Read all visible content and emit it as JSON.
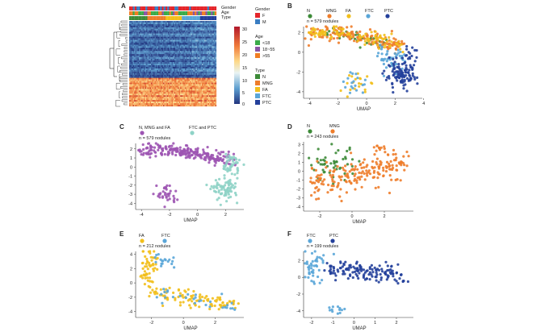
{
  "panel_letters": [
    "A",
    "B",
    "C",
    "D",
    "E",
    "F"
  ],
  "heatmap": {
    "annotation_labels": [
      "Gender",
      "Age",
      "Type"
    ],
    "scale_ticks": [
      "30",
      "25",
      "20",
      "15",
      "10",
      "5",
      "0"
    ],
    "legend": {
      "gender": {
        "title": "Gender",
        "items": [
          {
            "label": "F",
            "color": "#e4262b"
          },
          {
            "label": "M",
            "color": "#3a7dc2"
          }
        ]
      },
      "age": {
        "title": "Age",
        "items": [
          {
            "label": "<18",
            "color": "#3bab4a"
          },
          {
            "label": "18~55",
            "color": "#8a55a5"
          },
          {
            "label": ">55",
            "color": "#f07d22"
          }
        ]
      },
      "type": {
        "title": "Type",
        "items": [
          {
            "label": "N",
            "color": "#3d8b38"
          },
          {
            "label": "MNG",
            "color": "#ee7d2b"
          },
          {
            "label": "FA",
            "color": "#f2bf1c"
          },
          {
            "label": "FTC",
            "color": "#5aa6d8"
          },
          {
            "label": "PTC",
            "color": "#24409b"
          }
        ]
      }
    }
  },
  "chart_data": [
    {
      "panel": "B",
      "type": "scatter",
      "xlabel": "UMAP",
      "xlim": [
        -4.3,
        3.9
      ],
      "ylim": [
        -4.5,
        2.6
      ],
      "xticks": [
        -4,
        -2,
        0,
        2,
        4
      ],
      "yticks": [
        2,
        0,
        -2,
        -4
      ],
      "note": "n = 579 nodules",
      "series": [
        {
          "name": "N",
          "color": "#3d8b38"
        },
        {
          "name": "MNG",
          "color": "#ee7d2b"
        },
        {
          "name": "FA",
          "color": "#f2bf1c"
        },
        {
          "name": "FTC",
          "color": "#5aa6d8"
        },
        {
          "name": "PTC",
          "color": "#24409b"
        }
      ]
    },
    {
      "panel": "C",
      "type": "scatter",
      "xlabel": "UMAP",
      "xlim": [
        -4.3,
        3.3
      ],
      "ylim": [
        -4.5,
        2.6
      ],
      "xticks": [
        -4,
        -2,
        0,
        2
      ],
      "yticks": [
        2,
        1,
        0,
        -1,
        -2,
        -3,
        -4
      ],
      "note": "n = 579 nodules",
      "series": [
        {
          "name": "N, MNG and FA",
          "color": "#9d55b3"
        },
        {
          "name": "FTC and PTC",
          "color": "#8fd3c7"
        }
      ]
    },
    {
      "panel": "D",
      "type": "scatter",
      "xlabel": "UMAP",
      "xlim": [
        -2.9,
        3.8
      ],
      "ylim": [
        -4.3,
        3.3
      ],
      "xticks": [
        -2,
        0,
        2
      ],
      "yticks": [
        3,
        2,
        1,
        0,
        -1,
        -2,
        -3,
        -4
      ],
      "note": "n = 243 nodules",
      "series": [
        {
          "name": "N",
          "color": "#3d8b38"
        },
        {
          "name": "MNG",
          "color": "#ee7d2b"
        }
      ]
    },
    {
      "panel": "E",
      "type": "scatter",
      "xlabel": "UMAP",
      "xlim": [
        -2.9,
        3.8
      ],
      "ylim": [
        -4.6,
        4.4
      ],
      "xticks": [
        -2,
        0,
        2
      ],
      "yticks": [
        4,
        2,
        0,
        -2,
        -4
      ],
      "note": "n = 212 nodules",
      "series": [
        {
          "name": "FA",
          "color": "#f2bf1c"
        },
        {
          "name": "FTC",
          "color": "#5aa6d8"
        }
      ]
    },
    {
      "panel": "F",
      "type": "scatter",
      "xlabel": "UMAP",
      "xlim": [
        -2.3,
        2.8
      ],
      "ylim": [
        -4.6,
        3.1
      ],
      "xticks": [
        -2,
        -1,
        0,
        1,
        2
      ],
      "yticks": [
        2,
        0,
        -2,
        -4
      ],
      "note": "n = 199 nodules",
      "series": [
        {
          "name": "FTC",
          "color": "#5aa6d8"
        },
        {
          "name": "PTC",
          "color": "#24409b"
        }
      ]
    }
  ]
}
